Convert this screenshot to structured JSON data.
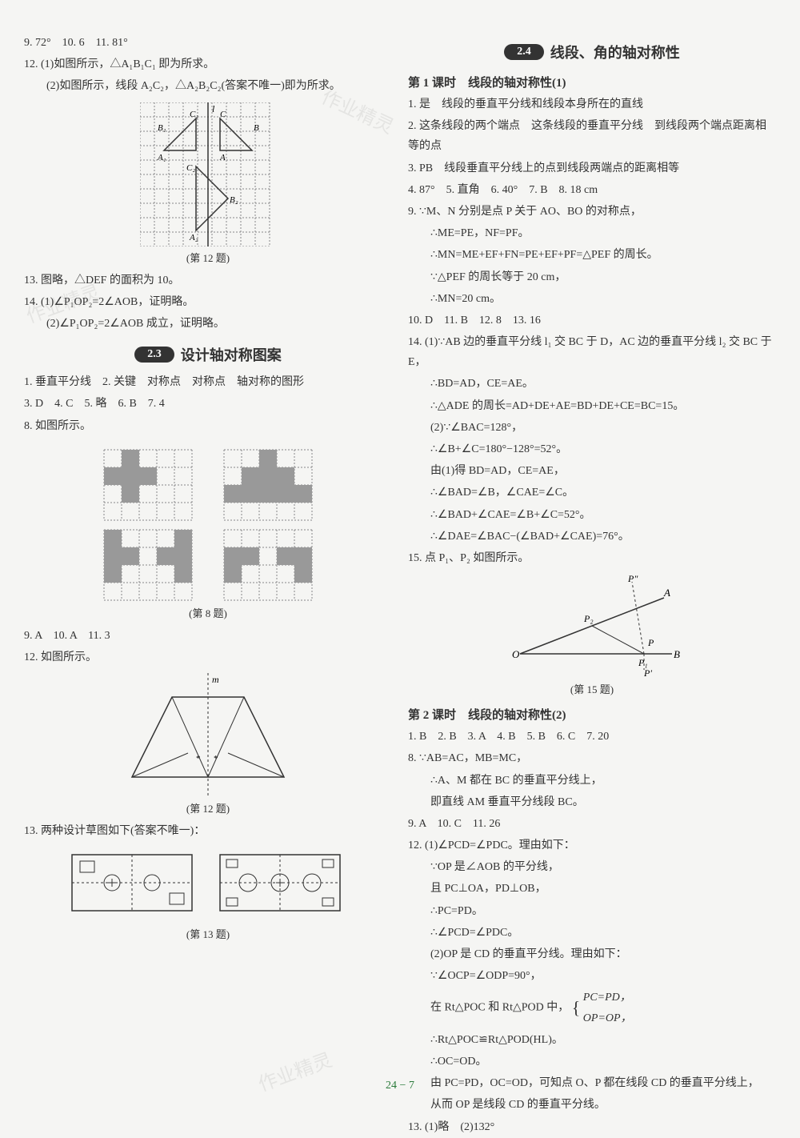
{
  "left": {
    "l1": "9. 72°　10. 6　11. 81°",
    "l2": "12. (1)如图所示，△A₁B₁C₁ 即为所求。",
    "l3": "(2)如图所示，线段 A₂C₂，△A₂B₂C₂(答案不唯一)即为所求。",
    "fig12_cap": "(第 12 题)",
    "l4": "13. 图略，△DEF 的面积为 10。",
    "l5": "14. (1)∠P₁OP₂=2∠AOB，证明略。",
    "l6": "(2)∠P₁OP₂=2∠AOB 成立，证明略。",
    "sec23_badge": "2.3",
    "sec23_title": "设计轴对称图案",
    "l7": "1. 垂直平分线　2. 关键　对称点　对称点　轴对称的图形",
    "l8": "3. D　4. C　5. 略　6. B　7. 4",
    "l9": "8. 如图所示。",
    "fig8_cap": "(第 8 题)",
    "l10": "9. A　10. A　11. 3",
    "l11": "12. 如图所示。",
    "fig12b_cap": "(第 12 题)",
    "l12": "13. 两种设计草图如下(答案不唯一)：",
    "fig13_cap": "(第 13 题)"
  },
  "right": {
    "sec24_badge": "2.4",
    "sec24_title": "线段、角的轴对称性",
    "sub1": "第 1 课时　线段的轴对称性(1)",
    "r1": "1. 是　线段的垂直平分线和线段本身所在的直线",
    "r2": "2. 这条线段的两个端点　这条线段的垂直平分线　到线段两个端点距离相等的点",
    "r3": "3. PB　线段垂直平分线上的点到线段两端点的距离相等",
    "r4": "4. 87°　5. 直角　6. 40°　7. B　8. 18 cm",
    "r5": "9. ∵M、N 分别是点 P 关于 AO、BO 的对称点，",
    "r6": "∴ME=PE，NF=PF。",
    "r7": "∴MN=ME+EF+FN=PE+EF+PF=△PEF 的周长。",
    "r8": "∵△PEF 的周长等于 20 cm，",
    "r9": "∴MN=20 cm。",
    "r10": "10. D　11. B　12. 8　13. 16",
    "r11": "14. (1)∵AB 边的垂直平分线 l₁ 交 BC 于 D，AC 边的垂直平分线 l₂ 交 BC 于 E，",
    "r12": "∴BD=AD，CE=AE。",
    "r13": "∴△ADE 的周长=AD+DE+AE=BD+DE+CE=BC=15。",
    "r14": "(2)∵∠BAC=128°，",
    "r15": "∴∠B+∠C=180°−128°=52°。",
    "r16": "由(1)得 BD=AD，CE=AE，",
    "r17": "∴∠BAD=∠B，∠CAE=∠C。",
    "r18": "∴∠BAD+∠CAE=∠B+∠C=52°。",
    "r19": "∴∠DAE=∠BAC−(∠BAD+∠CAE)=76°。",
    "r20": "15. 点 P₁、P₂ 如图所示。",
    "fig15_cap": "(第 15 题)",
    "sub2": "第 2 课时　线段的轴对称性(2)",
    "r21": "1. B　2. B　3. A　4. B　5. B　6. C　7. 20",
    "r22": "8. ∵AB=AC，MB=MC，",
    "r23": "∴A、M 都在 BC 的垂直平分线上，",
    "r24": "即直线 AM 垂直平分线段 BC。",
    "r25": "9. A　10. C　11. 26",
    "r26": "12. (1)∠PCD=∠PDC。理由如下：",
    "r27": "∵OP 是∠AOB 的平分线，",
    "r28": "且 PC⊥OA，PD⊥OB，",
    "r29": "∴PC=PD。",
    "r30": "∴∠PCD=∠PDC。",
    "r31": "(2)OP 是 CD 的垂直平分线。理由如下：",
    "r32": "∵∠OCP=∠ODP=90°，",
    "r33": "在 Rt△POC 和 Rt△POD 中，",
    "r33b": "PC=PD，",
    "r33c": "OP=OP，",
    "r34": "∴Rt△POC≌Rt△POD(HL)。",
    "r35": "∴OC=OD。",
    "r36": "由 PC=PD，OC=OD，可知点 O、P 都在线段 CD 的垂直平分线上，",
    "r37": "从而 OP 是线段 CD 的垂直平分线。",
    "r38": "13. (1)略　(2)132°"
  },
  "page_num": "24 − 7",
  "watermarks": {
    "wm": "作业精灵"
  },
  "figures": {
    "fig12a_grid": {
      "cols": 8,
      "rows": 8,
      "cell": 18
    },
    "fig8_grid": {
      "cols": 6,
      "rows": 4,
      "cell": 22
    },
    "fig15_labels": {
      "O": "O",
      "A": "A",
      "B": "B",
      "P": "P",
      "P1": "P₁",
      "P2": "P₂",
      "Pp": "P′",
      "Pk": "P″"
    }
  },
  "colors": {
    "text": "#333333",
    "badge_bg": "#333333",
    "badge_fg": "#ffffff",
    "grid_line": "#888888",
    "figure_fill": "#999999",
    "page_bg": "#f5f5f3"
  }
}
